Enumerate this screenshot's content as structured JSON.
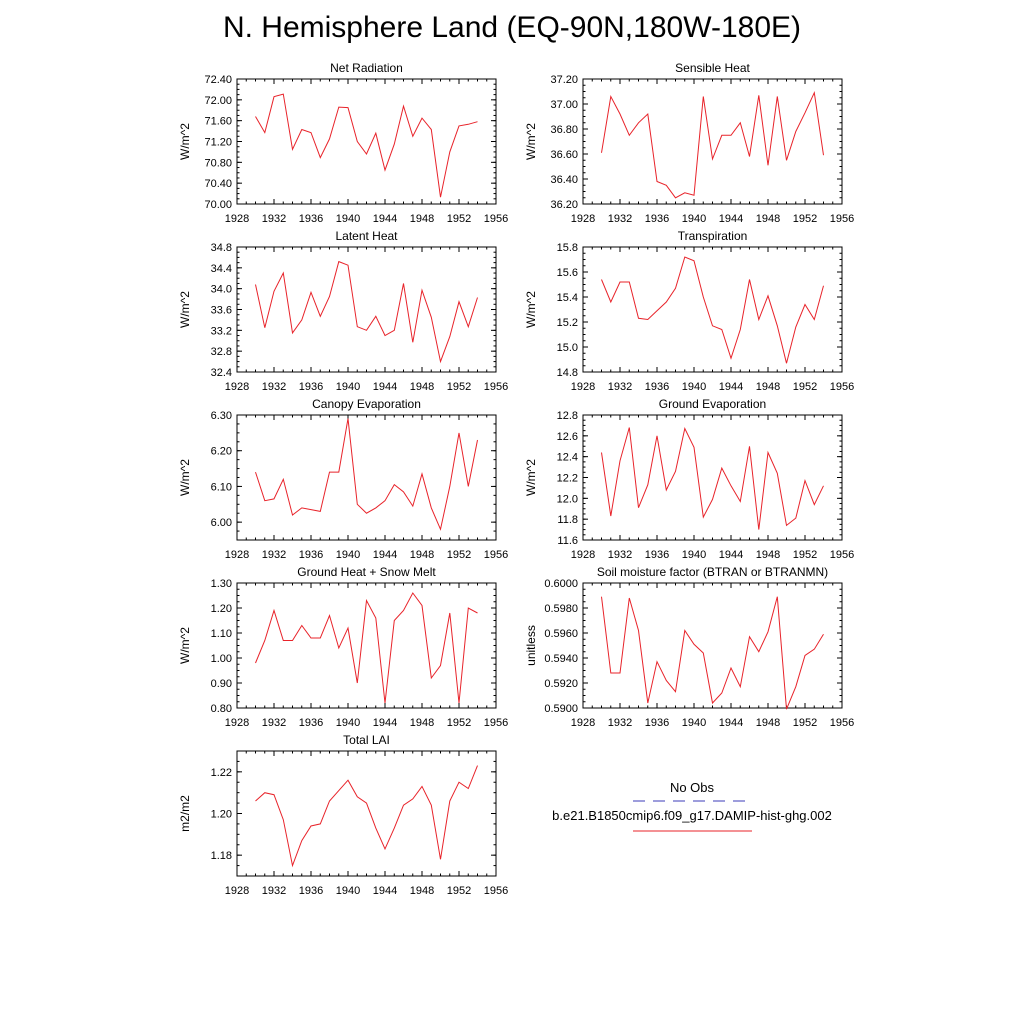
{
  "page_title": "N. Hemisphere Land (EQ-90N,180W-180E)",
  "legend": {
    "obs_label": "No Obs",
    "obs_color": "#3b3bb8",
    "model_label": "b.e21.B1850cmip6.f09_g17.DAMIP-hist-ghg.002",
    "model_color": "#e8232a"
  },
  "line_color": "#e8232a",
  "chart_data": [
    {
      "type": "line",
      "title": "Net Radiation",
      "ylabel": "W/m^2",
      "xlim": [
        1928,
        1956
      ],
      "xticks": [
        "1928",
        "1932",
        "1936",
        "1940",
        "1944",
        "1948",
        "1952",
        "1956"
      ],
      "ylim": [
        70.0,
        72.4
      ],
      "yticks": [
        "70.00",
        "70.40",
        "70.80",
        "71.20",
        "71.60",
        "72.00",
        "72.40"
      ],
      "x": [
        1930,
        1931,
        1932,
        1933,
        1934,
        1935,
        1936,
        1937,
        1938,
        1939,
        1940,
        1941,
        1942,
        1943,
        1944,
        1945,
        1946,
        1947,
        1948,
        1949,
        1950,
        1951,
        1952,
        1953,
        1954
      ],
      "values": [
        71.68,
        71.37,
        72.06,
        72.11,
        71.05,
        71.43,
        71.37,
        70.89,
        71.25,
        71.86,
        71.85,
        71.2,
        70.96,
        71.36,
        70.65,
        71.15,
        71.88,
        71.3,
        71.65,
        71.43,
        70.13,
        71.0,
        71.5,
        71.53,
        71.58
      ]
    },
    {
      "type": "line",
      "title": "Sensible Heat",
      "ylabel": "W/m^2",
      "xlim": [
        1928,
        1956
      ],
      "xticks": [
        "1928",
        "1932",
        "1936",
        "1940",
        "1944",
        "1948",
        "1952",
        "1956"
      ],
      "ylim": [
        36.2,
        37.2
      ],
      "yticks": [
        "36.20",
        "36.40",
        "36.60",
        "36.80",
        "37.00",
        "37.20"
      ],
      "x": [
        1930,
        1931,
        1932,
        1933,
        1934,
        1935,
        1936,
        1937,
        1938,
        1939,
        1940,
        1941,
        1942,
        1943,
        1944,
        1945,
        1946,
        1947,
        1948,
        1949,
        1950,
        1951,
        1952,
        1953,
        1954
      ],
      "values": [
        36.61,
        37.06,
        36.92,
        36.75,
        36.85,
        36.92,
        36.38,
        36.35,
        36.25,
        36.29,
        36.27,
        37.06,
        36.56,
        36.75,
        36.75,
        36.85,
        36.58,
        37.07,
        36.51,
        37.06,
        36.55,
        36.78,
        36.93,
        37.09,
        36.59
      ]
    },
    {
      "type": "line",
      "title": "Latent Heat",
      "ylabel": "W/m^2",
      "xlim": [
        1928,
        1956
      ],
      "xticks": [
        "1928",
        "1932",
        "1936",
        "1940",
        "1944",
        "1948",
        "1952",
        "1956"
      ],
      "ylim": [
        32.4,
        34.8
      ],
      "yticks": [
        "32.4",
        "32.8",
        "33.2",
        "33.6",
        "34.0",
        "34.4",
        "34.8"
      ],
      "x": [
        1930,
        1931,
        1932,
        1933,
        1934,
        1935,
        1936,
        1937,
        1938,
        1939,
        1940,
        1941,
        1942,
        1943,
        1944,
        1945,
        1946,
        1947,
        1948,
        1949,
        1950,
        1951,
        1952,
        1953,
        1954
      ],
      "values": [
        34.08,
        33.25,
        33.95,
        34.3,
        33.15,
        33.4,
        33.93,
        33.47,
        33.85,
        34.52,
        34.45,
        33.27,
        33.2,
        33.47,
        33.1,
        33.2,
        34.1,
        32.97,
        33.97,
        33.45,
        32.6,
        33.08,
        33.75,
        33.27,
        33.83
      ]
    },
    {
      "type": "line",
      "title": "Transpiration",
      "ylabel": "W/m^2",
      "xlim": [
        1928,
        1956
      ],
      "xticks": [
        "1928",
        "1932",
        "1936",
        "1940",
        "1944",
        "1948",
        "1952",
        "1956"
      ],
      "ylim": [
        14.8,
        15.8
      ],
      "yticks": [
        "14.8",
        "15.0",
        "15.2",
        "15.4",
        "15.6",
        "15.8"
      ],
      "x": [
        1930,
        1931,
        1932,
        1933,
        1934,
        1935,
        1936,
        1937,
        1938,
        1939,
        1940,
        1941,
        1942,
        1943,
        1944,
        1945,
        1946,
        1947,
        1948,
        1949,
        1950,
        1951,
        1952,
        1953,
        1954
      ],
      "values": [
        15.54,
        15.36,
        15.52,
        15.52,
        15.23,
        15.22,
        15.29,
        15.36,
        15.47,
        15.72,
        15.69,
        15.4,
        15.17,
        15.14,
        14.91,
        15.14,
        15.54,
        15.22,
        15.41,
        15.17,
        14.87,
        15.16,
        15.34,
        15.22,
        15.49
      ]
    },
    {
      "type": "line",
      "title": "Canopy Evaporation",
      "ylabel": "W/m^2",
      "xlim": [
        1928,
        1956
      ],
      "xticks": [
        "1928",
        "1932",
        "1936",
        "1940",
        "1944",
        "1948",
        "1952",
        "1956"
      ],
      "ylim": [
        5.95,
        6.3
      ],
      "yticks": [
        "6.00",
        "6.10",
        "6.20",
        "6.30"
      ],
      "x": [
        1930,
        1931,
        1932,
        1933,
        1934,
        1935,
        1936,
        1937,
        1938,
        1939,
        1940,
        1941,
        1942,
        1943,
        1944,
        1945,
        1946,
        1947,
        1948,
        1949,
        1950,
        1951,
        1952,
        1953,
        1954
      ],
      "values": [
        6.14,
        6.06,
        6.065,
        6.12,
        6.02,
        6.04,
        6.035,
        6.03,
        6.14,
        6.14,
        6.29,
        6.05,
        6.025,
        6.04,
        6.06,
        6.105,
        6.085,
        6.045,
        6.135,
        6.04,
        5.98,
        6.1,
        6.25,
        6.1,
        6.23
      ]
    },
    {
      "type": "line",
      "title": "Ground Evaporation",
      "ylabel": "W/m^2",
      "xlim": [
        1928,
        1956
      ],
      "xticks": [
        "1928",
        "1932",
        "1936",
        "1940",
        "1944",
        "1948",
        "1952",
        "1956"
      ],
      "ylim": [
        11.6,
        12.8
      ],
      "yticks": [
        "11.6",
        "11.8",
        "12.0",
        "12.2",
        "12.4",
        "12.6",
        "12.8"
      ],
      "x": [
        1930,
        1931,
        1932,
        1933,
        1934,
        1935,
        1936,
        1937,
        1938,
        1939,
        1940,
        1941,
        1942,
        1943,
        1944,
        1945,
        1946,
        1947,
        1948,
        1949,
        1950,
        1951,
        1952,
        1953,
        1954
      ],
      "values": [
        12.44,
        11.83,
        12.36,
        12.68,
        11.91,
        12.13,
        12.6,
        12.08,
        12.26,
        12.67,
        12.49,
        11.82,
        11.99,
        12.29,
        12.12,
        11.97,
        12.5,
        11.7,
        12.44,
        12.24,
        11.74,
        11.81,
        12.17,
        11.94,
        12.12
      ]
    },
    {
      "type": "line",
      "title": "Ground Heat + Snow Melt",
      "ylabel": "W/m^2",
      "xlim": [
        1928,
        1956
      ],
      "xticks": [
        "1928",
        "1932",
        "1936",
        "1940",
        "1944",
        "1948",
        "1952",
        "1956"
      ],
      "ylim": [
        0.8,
        1.3
      ],
      "yticks": [
        "0.80",
        "0.90",
        "1.00",
        "1.10",
        "1.20",
        "1.30"
      ],
      "x": [
        1930,
        1931,
        1932,
        1933,
        1934,
        1935,
        1936,
        1937,
        1938,
        1939,
        1940,
        1941,
        1942,
        1943,
        1944,
        1945,
        1946,
        1947,
        1948,
        1949,
        1950,
        1951,
        1952,
        1953,
        1954
      ],
      "values": [
        0.98,
        1.07,
        1.19,
        1.07,
        1.07,
        1.13,
        1.08,
        1.08,
        1.17,
        1.04,
        1.12,
        0.9,
        1.23,
        1.16,
        0.82,
        1.15,
        1.19,
        1.26,
        1.21,
        0.92,
        0.97,
        1.18,
        0.82,
        1.2,
        1.18
      ]
    },
    {
      "type": "line",
      "title": "Soil moisture factor (BTRAN or BTRANMN)",
      "ylabel": "unitless",
      "xlim": [
        1928,
        1956
      ],
      "xticks": [
        "1928",
        "1932",
        "1936",
        "1940",
        "1944",
        "1948",
        "1952",
        "1956"
      ],
      "ylim": [
        0.59,
        0.6
      ],
      "yticks": [
        "0.5900",
        "0.5920",
        "0.5940",
        "0.5960",
        "0.5980",
        "0.6000"
      ],
      "x": [
        1930,
        1931,
        1932,
        1933,
        1934,
        1935,
        1936,
        1937,
        1938,
        1939,
        1940,
        1941,
        1942,
        1943,
        1944,
        1945,
        1946,
        1947,
        1948,
        1949,
        1950,
        1951,
        1952,
        1953,
        1954
      ],
      "values": [
        0.5989,
        0.5928,
        0.5928,
        0.5988,
        0.5962,
        0.5904,
        0.5937,
        0.5922,
        0.5913,
        0.5962,
        0.5951,
        0.5944,
        0.5904,
        0.5912,
        0.5932,
        0.5917,
        0.5957,
        0.5945,
        0.5961,
        0.5989,
        0.5899,
        0.5917,
        0.5942,
        0.5947,
        0.5959
      ]
    },
    {
      "type": "line",
      "title": "Total LAI",
      "ylabel": "m2/m2",
      "xlim": [
        1928,
        1956
      ],
      "xticks": [
        "1928",
        "1932",
        "1936",
        "1940",
        "1944",
        "1948",
        "1952",
        "1956"
      ],
      "ylim": [
        1.17,
        1.23
      ],
      "yticks": [
        "1.18",
        "1.20",
        "1.22"
      ],
      "x": [
        1930,
        1931,
        1932,
        1933,
        1934,
        1935,
        1936,
        1937,
        1938,
        1939,
        1940,
        1941,
        1942,
        1943,
        1944,
        1945,
        1946,
        1947,
        1948,
        1949,
        1950,
        1951,
        1952,
        1953,
        1954
      ],
      "values": [
        1.206,
        1.21,
        1.209,
        1.197,
        1.175,
        1.187,
        1.194,
        1.195,
        1.206,
        1.211,
        1.216,
        1.208,
        1.205,
        1.193,
        1.183,
        1.193,
        1.204,
        1.207,
        1.213,
        1.204,
        1.178,
        1.206,
        1.215,
        1.212,
        1.223
      ]
    }
  ]
}
